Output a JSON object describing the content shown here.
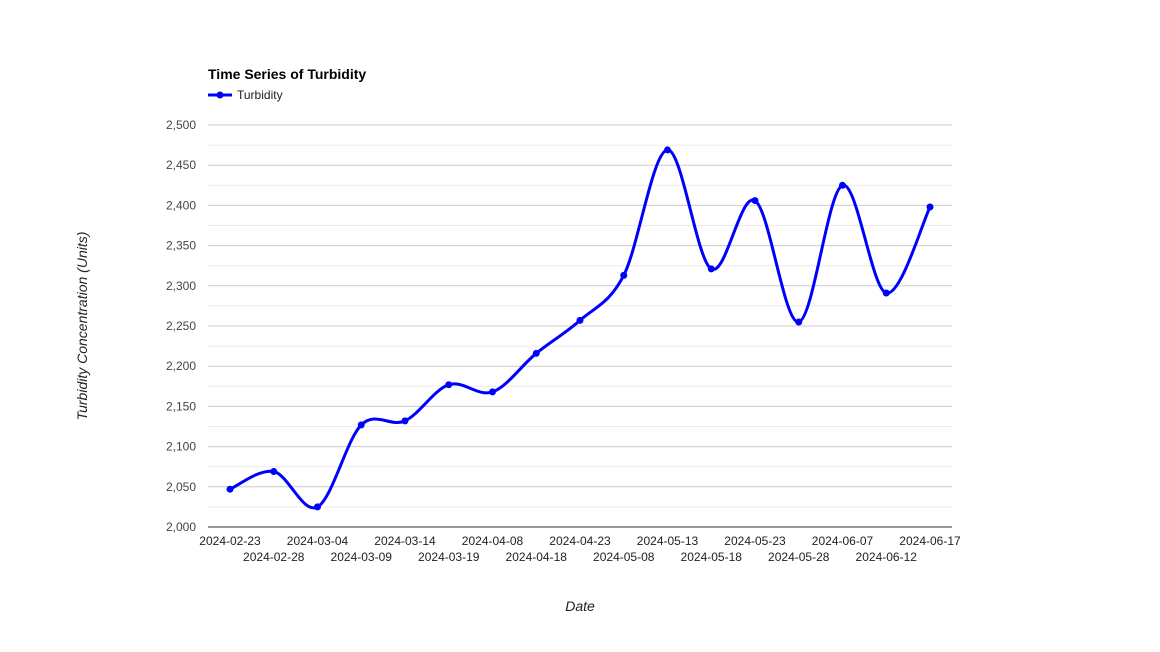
{
  "chart_data": {
    "type": "line",
    "title": "Time Series of Turbidity",
    "xlabel": "Date",
    "ylabel": "Turbidity Concentration (Units)",
    "ylim": [
      2000,
      2500
    ],
    "yticks": [
      2000,
      2050,
      2100,
      2150,
      2200,
      2250,
      2300,
      2350,
      2400,
      2450,
      2500
    ],
    "ytick_labels": [
      "2,000",
      "2,050",
      "2,100",
      "2,150",
      "2,200",
      "2,250",
      "2,300",
      "2,350",
      "2,400",
      "2,450",
      "2,500"
    ],
    "grid": true,
    "legend_position": "top-left",
    "categories": [
      "2024-02-23",
      "2024-02-28",
      "2024-03-04",
      "2024-03-09",
      "2024-03-14",
      "2024-03-19",
      "2024-04-08",
      "2024-04-18",
      "2024-04-23",
      "2024-05-08",
      "2024-05-13",
      "2024-05-18",
      "2024-05-23",
      "2024-05-28",
      "2024-06-07",
      "2024-06-12",
      "2024-06-17"
    ],
    "series": [
      {
        "name": "Turbidity",
        "color": "#0000ff",
        "values": [
          2047,
          2069,
          2025,
          2127,
          2132,
          2177,
          2168,
          2216,
          2257,
          2313,
          2469,
          2321,
          2406,
          2255,
          2425,
          2291,
          2398
        ]
      }
    ]
  }
}
